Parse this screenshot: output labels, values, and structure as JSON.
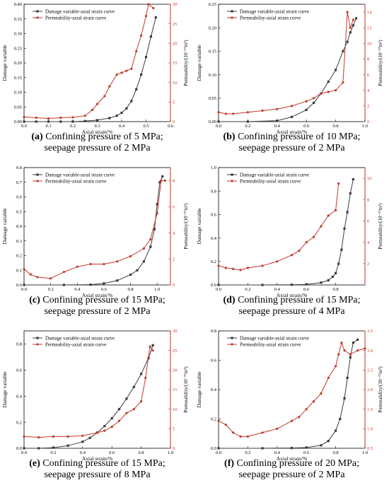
{
  "colors": {
    "damage": "#3b3b3b",
    "permeability": "#c0392b",
    "axis": "#000000",
    "right_axis": "#c0392b"
  },
  "chart_data": [
    {
      "id": "a",
      "type": "line",
      "caption_label": "(a)",
      "caption_line1": " Confining pressure of 5 MPa;",
      "caption_line2": "seepage pressure of 2 MPa",
      "xlabel": "Axial strain/%",
      "ylabel": "Damage variable",
      "y2label": "Permeability/(10⁻¹⁷m²)",
      "xlim": [
        0,
        0.6
      ],
      "ylim": [
        0,
        0.4
      ],
      "y2lim": [
        0,
        30
      ],
      "xticks": [
        "0.0",
        "0.1",
        "0.2",
        "0.3",
        "0.4",
        "0.5",
        "0.6"
      ],
      "yticks": [
        "0.00",
        "0.05",
        "0.10",
        "0.15",
        "0.20",
        "0.25",
        "0.30",
        "0.35",
        "0.40"
      ],
      "y2ticks": [
        "0",
        "5",
        "10",
        "15",
        "20",
        "25",
        "30"
      ],
      "legend": [
        "Damage variable-axial strain curve",
        "Permeability-axial strain curve"
      ],
      "series": [
        {
          "name": "Damage variable-axial strain curve",
          "axis": "left",
          "marker": "square",
          "x": [
            0.0,
            0.05,
            0.1,
            0.15,
            0.2,
            0.25,
            0.3,
            0.35,
            0.38,
            0.4,
            0.42,
            0.44,
            0.46,
            0.48,
            0.5,
            0.52,
            0.54
          ],
          "y": [
            0,
            0,
            0,
            0,
            0,
            0.002,
            0.005,
            0.012,
            0.02,
            0.03,
            0.045,
            0.07,
            0.11,
            0.16,
            0.22,
            0.29,
            0.355
          ]
        },
        {
          "name": "Permeability-axial strain curve",
          "axis": "right",
          "marker": "dot",
          "x": [
            0.0,
            0.05,
            0.1,
            0.15,
            0.2,
            0.25,
            0.28,
            0.3,
            0.33,
            0.35,
            0.38,
            0.4,
            0.42,
            0.44,
            0.46,
            0.48,
            0.5,
            0.51,
            0.53
          ],
          "y": [
            1.2,
            1.0,
            0.8,
            1.0,
            1.1,
            1.5,
            3,
            4.5,
            6.5,
            9,
            12,
            12.5,
            13,
            13.5,
            18,
            22,
            27,
            30,
            29
          ]
        }
      ]
    },
    {
      "id": "b",
      "type": "line",
      "caption_label": "(b)",
      "caption_line1": " Confining pressure of 10 MPa;",
      "caption_line2": "seepage pressure of 2 MPa",
      "xlabel": "Axial strain/%",
      "ylabel": "Damage variable",
      "y2label": "Permeability/(10⁻¹⁷m²)",
      "xlim": [
        0,
        1.0
      ],
      "ylim": [
        0,
        0.25
      ],
      "y2lim": [
        0,
        15
      ],
      "xticks": [
        "0.0",
        "0.2",
        "0.4",
        "0.6",
        "0.8",
        "1.0"
      ],
      "yticks": [
        "0.00",
        "0.05",
        "0.10",
        "0.15",
        "0.20",
        "0.25"
      ],
      "y2ticks": [
        "0",
        "2",
        "4",
        "6",
        "8",
        "10",
        "12",
        "14"
      ],
      "legend": [
        "Damage variable-axial strain curve",
        "Permeability-axial strain curve"
      ],
      "series": [
        {
          "name": "Damage variable-axial strain curve",
          "axis": "left",
          "marker": "square",
          "x": [
            0.0,
            0.2,
            0.4,
            0.5,
            0.6,
            0.65,
            0.7,
            0.75,
            0.8,
            0.85,
            0.88,
            0.9,
            0.92,
            0.94
          ],
          "y": [
            0,
            0,
            0.002,
            0.01,
            0.025,
            0.04,
            0.06,
            0.085,
            0.11,
            0.15,
            0.17,
            0.19,
            0.205,
            0.22
          ]
        },
        {
          "name": "Permeability-axial strain curve",
          "axis": "right",
          "marker": "dot",
          "x": [
            0.0,
            0.05,
            0.1,
            0.2,
            0.3,
            0.4,
            0.5,
            0.6,
            0.65,
            0.7,
            0.75,
            0.8,
            0.85,
            0.88,
            0.9,
            0.92
          ],
          "y": [
            1.2,
            1.0,
            1.0,
            1.2,
            1.4,
            1.6,
            2.0,
            2.6,
            3.0,
            3.6,
            3.8,
            4.0,
            5.0,
            14,
            12,
            13
          ]
        }
      ]
    },
    {
      "id": "c",
      "type": "line",
      "caption_label": "(c)",
      "caption_line1": " Confining pressure of 15 MPa;",
      "caption_line2": "seepage pressure of 2 MPa",
      "xlabel": "Axial strain/%",
      "ylabel": "Damage variable",
      "y2label": "Permeability/(10⁻¹⁷m²)",
      "xlim": [
        0,
        1.1
      ],
      "ylim": [
        0,
        0.8
      ],
      "y2lim": [
        0,
        9
      ],
      "xticks": [
        "0.0",
        "0.2",
        "0.4",
        "0.6",
        "0.8",
        "1.0"
      ],
      "yticks": [
        "0.0",
        "0.1",
        "0.2",
        "0.3",
        "0.4",
        "0.5",
        "0.6",
        "0.7",
        "0.8"
      ],
      "y2ticks": [
        "0",
        "2",
        "4",
        "6",
        "8"
      ],
      "legend": [
        "Damage variable-axial strain curve",
        "Permeability-axial strain curve"
      ],
      "series": [
        {
          "name": "Damage variable-axial strain curve",
          "axis": "left",
          "marker": "square",
          "x": [
            0.0,
            0.3,
            0.5,
            0.6,
            0.7,
            0.8,
            0.85,
            0.9,
            0.95,
            0.98,
            1.0,
            1.02,
            1.04
          ],
          "y": [
            0,
            0,
            0.002,
            0.01,
            0.03,
            0.07,
            0.1,
            0.16,
            0.26,
            0.38,
            0.55,
            0.7,
            0.74
          ]
        },
        {
          "name": "Permeability-axial strain curve",
          "axis": "right",
          "marker": "dot",
          "x": [
            0.0,
            0.05,
            0.1,
            0.2,
            0.3,
            0.4,
            0.5,
            0.6,
            0.7,
            0.8,
            0.9,
            0.95,
            1.0,
            1.03,
            1.06
          ],
          "y": [
            1.2,
            0.8,
            0.6,
            0.5,
            1.0,
            1.4,
            1.6,
            1.6,
            1.8,
            2.2,
            2.8,
            3.5,
            5.5,
            8.0,
            8.0
          ]
        }
      ]
    },
    {
      "id": "d",
      "type": "line",
      "caption_label": "(d)",
      "caption_line1": " Confining pressure of 15 MPa;",
      "caption_line2": "seepage pressure of 4 MPa",
      "xlabel": "Axial strain/%",
      "ylabel": "Damage variable",
      "y2label": "Permeability/(10⁻¹⁷m²)",
      "xlim": [
        0,
        1.0
      ],
      "ylim": [
        0,
        1.0
      ],
      "y2lim": [
        0,
        11
      ],
      "xticks": [
        "0.0",
        "0.2",
        "0.4",
        "0.6",
        "0.8"
      ],
      "yticks": [
        "0.0",
        "0.2",
        "0.4",
        "0.6",
        "0.8",
        "1.0"
      ],
      "y2ticks": [
        "2",
        "4",
        "6",
        "8",
        "10"
      ],
      "legend": [
        "Damage variable-axial strain curve",
        "Permeability-axial strain curve"
      ],
      "series": [
        {
          "name": "Damage variable-axial strain curve",
          "axis": "left",
          "marker": "square",
          "x": [
            0.0,
            0.3,
            0.5,
            0.6,
            0.7,
            0.75,
            0.78,
            0.8,
            0.82,
            0.84,
            0.86,
            0.88,
            0.9,
            0.92
          ],
          "y": [
            0,
            0,
            0.002,
            0.005,
            0.02,
            0.04,
            0.07,
            0.1,
            0.18,
            0.3,
            0.48,
            0.62,
            0.78,
            0.9
          ]
        },
        {
          "name": "Permeability-axial strain curve",
          "axis": "right",
          "marker": "dot",
          "x": [
            0.0,
            0.05,
            0.1,
            0.15,
            0.2,
            0.3,
            0.4,
            0.5,
            0.55,
            0.6,
            0.65,
            0.7,
            0.75,
            0.8,
            0.82
          ],
          "y": [
            1.8,
            1.6,
            1.5,
            1.4,
            1.6,
            1.8,
            2.2,
            2.8,
            3.2,
            4.0,
            4.5,
            5.5,
            6.5,
            7.0,
            9.5
          ]
        }
      ]
    },
    {
      "id": "e",
      "type": "line",
      "caption_label": "(e)",
      "caption_line1": " Confining pressure of 15 MPa;",
      "caption_line2": "seepage pressure of 8 MPa",
      "xlabel": "Axial strain/%",
      "ylabel": "Damage variable",
      "y2label": "Permeability/(10⁻¹⁷m²)",
      "xlim": [
        0,
        1.0
      ],
      "ylim": [
        0,
        0.9
      ],
      "y2lim": [
        0,
        30
      ],
      "xticks": [
        "0.0",
        "0.2",
        "0.4",
        "0.6",
        "0.8",
        "1.0"
      ],
      "yticks": [
        "0.0",
        "0.2",
        "0.4",
        "0.6",
        "0.8"
      ],
      "y2ticks": [
        "0",
        "5",
        "10",
        "15",
        "20",
        "25",
        "30"
      ],
      "legend": [
        "Damage variable-axial strain curve",
        "Permeability-axial strain curve"
      ],
      "series": [
        {
          "name": "Damage variable-axial strain curve",
          "axis": "left",
          "marker": "square",
          "x": [
            0.0,
            0.1,
            0.2,
            0.3,
            0.4,
            0.45,
            0.5,
            0.55,
            0.6,
            0.65,
            0.7,
            0.75,
            0.8,
            0.85,
            0.88
          ],
          "y": [
            0,
            0,
            0.005,
            0.02,
            0.05,
            0.08,
            0.12,
            0.17,
            0.23,
            0.3,
            0.38,
            0.47,
            0.57,
            0.69,
            0.79
          ]
        },
        {
          "name": "Permeability-axial strain curve",
          "axis": "right",
          "marker": "dot",
          "x": [
            0.0,
            0.1,
            0.2,
            0.3,
            0.4,
            0.5,
            0.55,
            0.6,
            0.65,
            0.7,
            0.75,
            0.8,
            0.83,
            0.86,
            0.88
          ],
          "y": [
            3,
            2.8,
            3,
            3,
            3.2,
            4,
            4.5,
            5.5,
            7,
            9,
            10,
            12,
            18,
            26,
            25
          ]
        }
      ]
    },
    {
      "id": "f",
      "type": "line",
      "caption_label": "(f)",
      "caption_line1": " Confining pressure of 20 MPa;",
      "caption_line2": "seepage pressure of 2 MPa",
      "xlabel": "Axial strain/%",
      "ylabel": "Damage variable",
      "y2label": "Permeability/(10⁻¹⁷m²)",
      "xlim": [
        0,
        1.0
      ],
      "ylim": [
        0,
        0.8
      ],
      "y2lim": [
        0.5,
        3.5
      ],
      "xticks": [
        "0.0",
        "0.2",
        "0.4",
        "0.6",
        "0.8",
        "1.0"
      ],
      "yticks": [
        "0.0",
        "0.2",
        "0.4",
        "0.6",
        "0.8"
      ],
      "y2ticks": [
        "0.5",
        "1.0",
        "1.5",
        "2.0",
        "2.5",
        "3.0",
        "3.5"
      ],
      "legend": [
        "Damage variable-axial strain curve",
        "Permeability-axial strain curve"
      ],
      "series": [
        {
          "name": "Damage variable-axial strain curve",
          "axis": "left",
          "marker": "square",
          "x": [
            0.0,
            0.3,
            0.5,
            0.6,
            0.7,
            0.75,
            0.8,
            0.83,
            0.86,
            0.88,
            0.9,
            0.92,
            0.95
          ],
          "y": [
            0,
            0,
            0.002,
            0.005,
            0.02,
            0.05,
            0.12,
            0.2,
            0.34,
            0.48,
            0.62,
            0.72,
            0.74
          ]
        },
        {
          "name": "Permeability-axial strain curve",
          "axis": "right",
          "marker": "dot",
          "x": [
            0.0,
            0.05,
            0.1,
            0.15,
            0.2,
            0.3,
            0.4,
            0.5,
            0.55,
            0.6,
            0.65,
            0.7,
            0.75,
            0.8,
            0.82,
            0.84,
            0.86,
            0.9,
            0.95,
            1.0
          ],
          "y": [
            1.2,
            1.1,
            0.9,
            0.8,
            0.8,
            0.9,
            1.0,
            1.2,
            1.3,
            1.5,
            1.7,
            1.9,
            2.3,
            2.6,
            2.9,
            3.2,
            3.0,
            2.9,
            3.0,
            3.05
          ]
        }
      ]
    }
  ]
}
